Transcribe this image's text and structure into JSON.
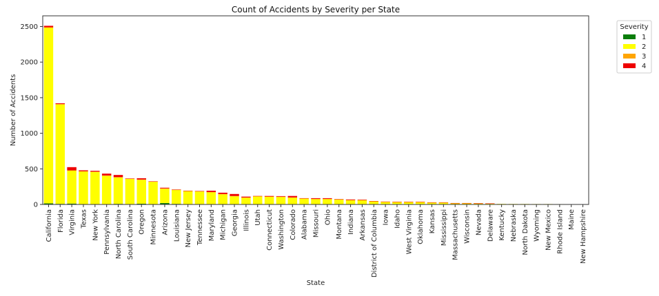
{
  "chart_data": {
    "type": "bar",
    "stacked": true,
    "title": "Count of Accidents by Severity per State",
    "xlabel": "State",
    "ylabel": "Number of Accidents",
    "ylim": [
      0,
      2650
    ],
    "yticks": [
      0,
      500,
      1000,
      1500,
      2000,
      2500
    ],
    "legend": {
      "title": "Severity",
      "placement": "outside-top-right"
    },
    "categories": [
      "California",
      "Florida",
      "Virginia",
      "Texas",
      "New York",
      "Pennsylvania",
      "North Carolina",
      "South Carolina",
      "Oregon",
      "Minnesota",
      "Arizona",
      "Louisiana",
      "New Jersey",
      "Tennessee",
      "Maryland",
      "Michigan",
      "Georgia",
      "Illinois",
      "Utah",
      "Connecticut",
      "Washington",
      "Colorado",
      "Alabama",
      "Missouri",
      "Ohio",
      "Montana",
      "Indiana",
      "Arkansas",
      "District of Columbia",
      "Iowa",
      "Idaho",
      "West Virginia",
      "Oklahoma",
      "Kansas",
      "Mississippi",
      "Massachusetts",
      "Wisconsin",
      "Nevada",
      "Delaware",
      "Kentucky",
      "Nebraska",
      "North Dakota",
      "Wyoming",
      "New Mexico",
      "Rhode Island",
      "Maine",
      "New Hampshire"
    ],
    "series": [
      {
        "name": "1",
        "color": "#0a7d0a",
        "values": [
          15,
          8,
          12,
          3,
          3,
          2,
          8,
          2,
          10,
          2,
          20,
          8,
          2,
          2,
          2,
          2,
          2,
          1,
          1,
          1,
          1,
          1,
          1,
          1,
          1,
          1,
          1,
          1,
          0,
          0,
          0,
          0,
          0,
          0,
          0,
          0,
          0,
          0,
          0,
          0,
          0,
          0,
          0,
          0,
          0,
          0,
          0
        ]
      },
      {
        "name": "2",
        "color": "#ffff00",
        "values": [
          2465,
          1395,
          462,
          457,
          453,
          398,
          370,
          358,
          335,
          318,
          200,
          197,
          188,
          183,
          168,
          140,
          112,
          92,
          115,
          107,
          105,
          95,
          83,
          75,
          75,
          70,
          58,
          58,
          45,
          37,
          35,
          35,
          35,
          28,
          28,
          18,
          18,
          15,
          13,
          8,
          7,
          7,
          6,
          6,
          5,
          4,
          3
        ]
      },
      {
        "name": "3",
        "color": "#ffa500",
        "values": [
          10,
          8,
          5,
          8,
          5,
          8,
          6,
          2,
          5,
          2,
          5,
          2,
          1,
          1,
          5,
          5,
          5,
          5,
          1,
          3,
          3,
          3,
          1,
          2,
          2,
          1,
          3,
          3,
          1,
          1,
          1,
          1,
          1,
          1,
          1,
          1,
          1,
          1,
          1,
          0,
          0,
          0,
          0,
          0,
          0,
          0,
          0
        ]
      },
      {
        "name": "4",
        "color": "#ee0000",
        "values": [
          20,
          10,
          45,
          12,
          12,
          25,
          30,
          3,
          18,
          3,
          10,
          3,
          2,
          3,
          18,
          18,
          28,
          12,
          2,
          8,
          8,
          20,
          3,
          10,
          10,
          3,
          8,
          6,
          2,
          2,
          2,
          2,
          2,
          1,
          1,
          1,
          1,
          1,
          1,
          0,
          0,
          0,
          0,
          0,
          0,
          0,
          0
        ]
      }
    ]
  }
}
